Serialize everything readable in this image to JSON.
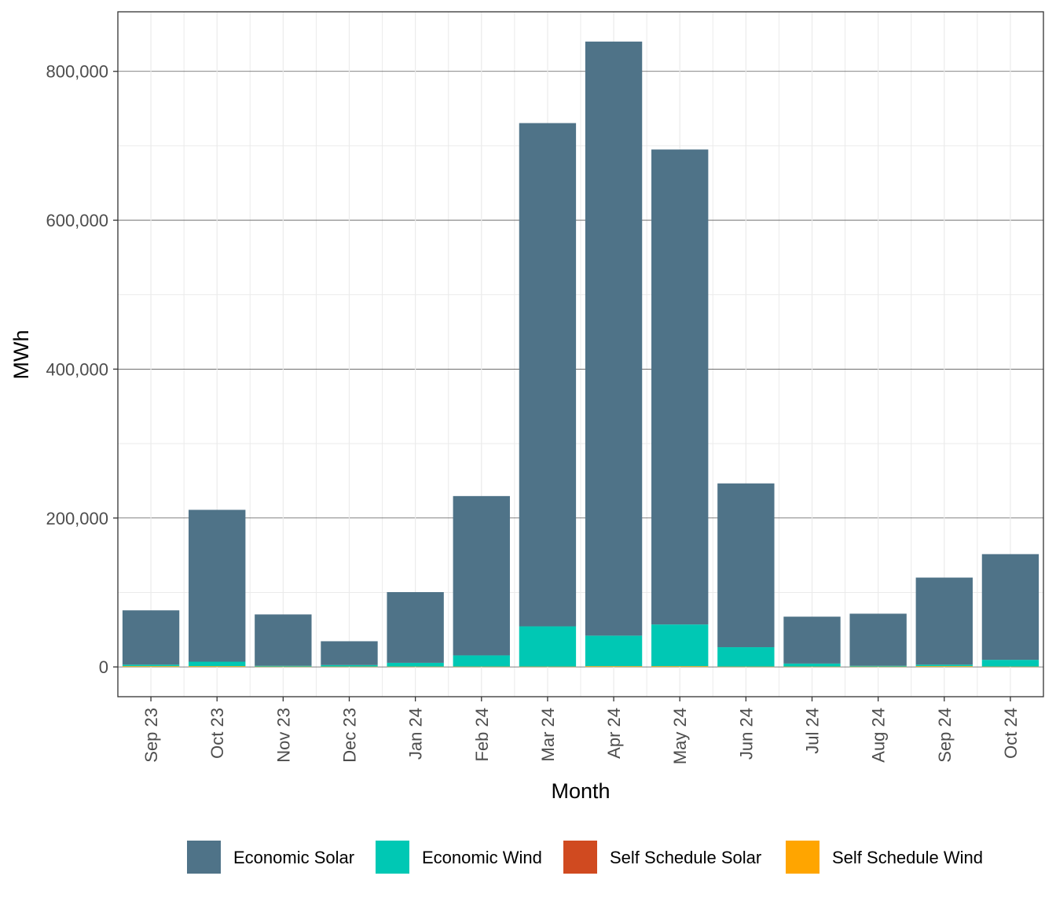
{
  "chart_data": {
    "type": "bar",
    "stacked": true,
    "xlabel": "Month",
    "ylabel": "MWh",
    "ylim": [
      -40000,
      880000
    ],
    "yticks": [
      0,
      200000,
      400000,
      600000,
      800000
    ],
    "ytick_labels": [
      "0",
      "200,000",
      "400,000",
      "600,000",
      "800,000"
    ],
    "categories": [
      "Sep 23",
      "Oct 23",
      "Nov 23",
      "Dec 23",
      "Jan 24",
      "Feb 24",
      "Mar 24",
      "Apr 24",
      "May 24",
      "Jun 24",
      "Jul 24",
      "Aug 24",
      "Sep 24",
      "Oct 24"
    ],
    "series": [
      {
        "name": "Self Schedule Wind",
        "color": "#FFA500",
        "values": [
          1000,
          1000,
          500,
          500,
          500,
          500,
          500,
          1000,
          1000,
          500,
          500,
          500,
          1000,
          500
        ]
      },
      {
        "name": "Self Schedule Solar",
        "color": "#D04A20",
        "values": [
          0,
          0,
          0,
          0,
          0,
          0,
          0,
          0,
          0,
          0,
          0,
          0,
          0,
          0
        ]
      },
      {
        "name": "Economic Wind",
        "color": "#00C8B4",
        "values": [
          2000,
          6000,
          1000,
          2000,
          5000,
          15000,
          54000,
          41000,
          56000,
          26000,
          4000,
          1000,
          2000,
          9000
        ]
      },
      {
        "name": "Economic Solar",
        "color": "#4F7388",
        "values": [
          73000,
          204000,
          69000,
          32000,
          95000,
          214000,
          676000,
          798000,
          638000,
          220000,
          63000,
          70000,
          117000,
          142000
        ]
      }
    ],
    "legend": {
      "position": "bottom",
      "items": [
        "Economic Solar",
        "Economic Wind",
        "Self Schedule Solar",
        "Self Schedule Wind"
      ]
    },
    "grid": true
  }
}
